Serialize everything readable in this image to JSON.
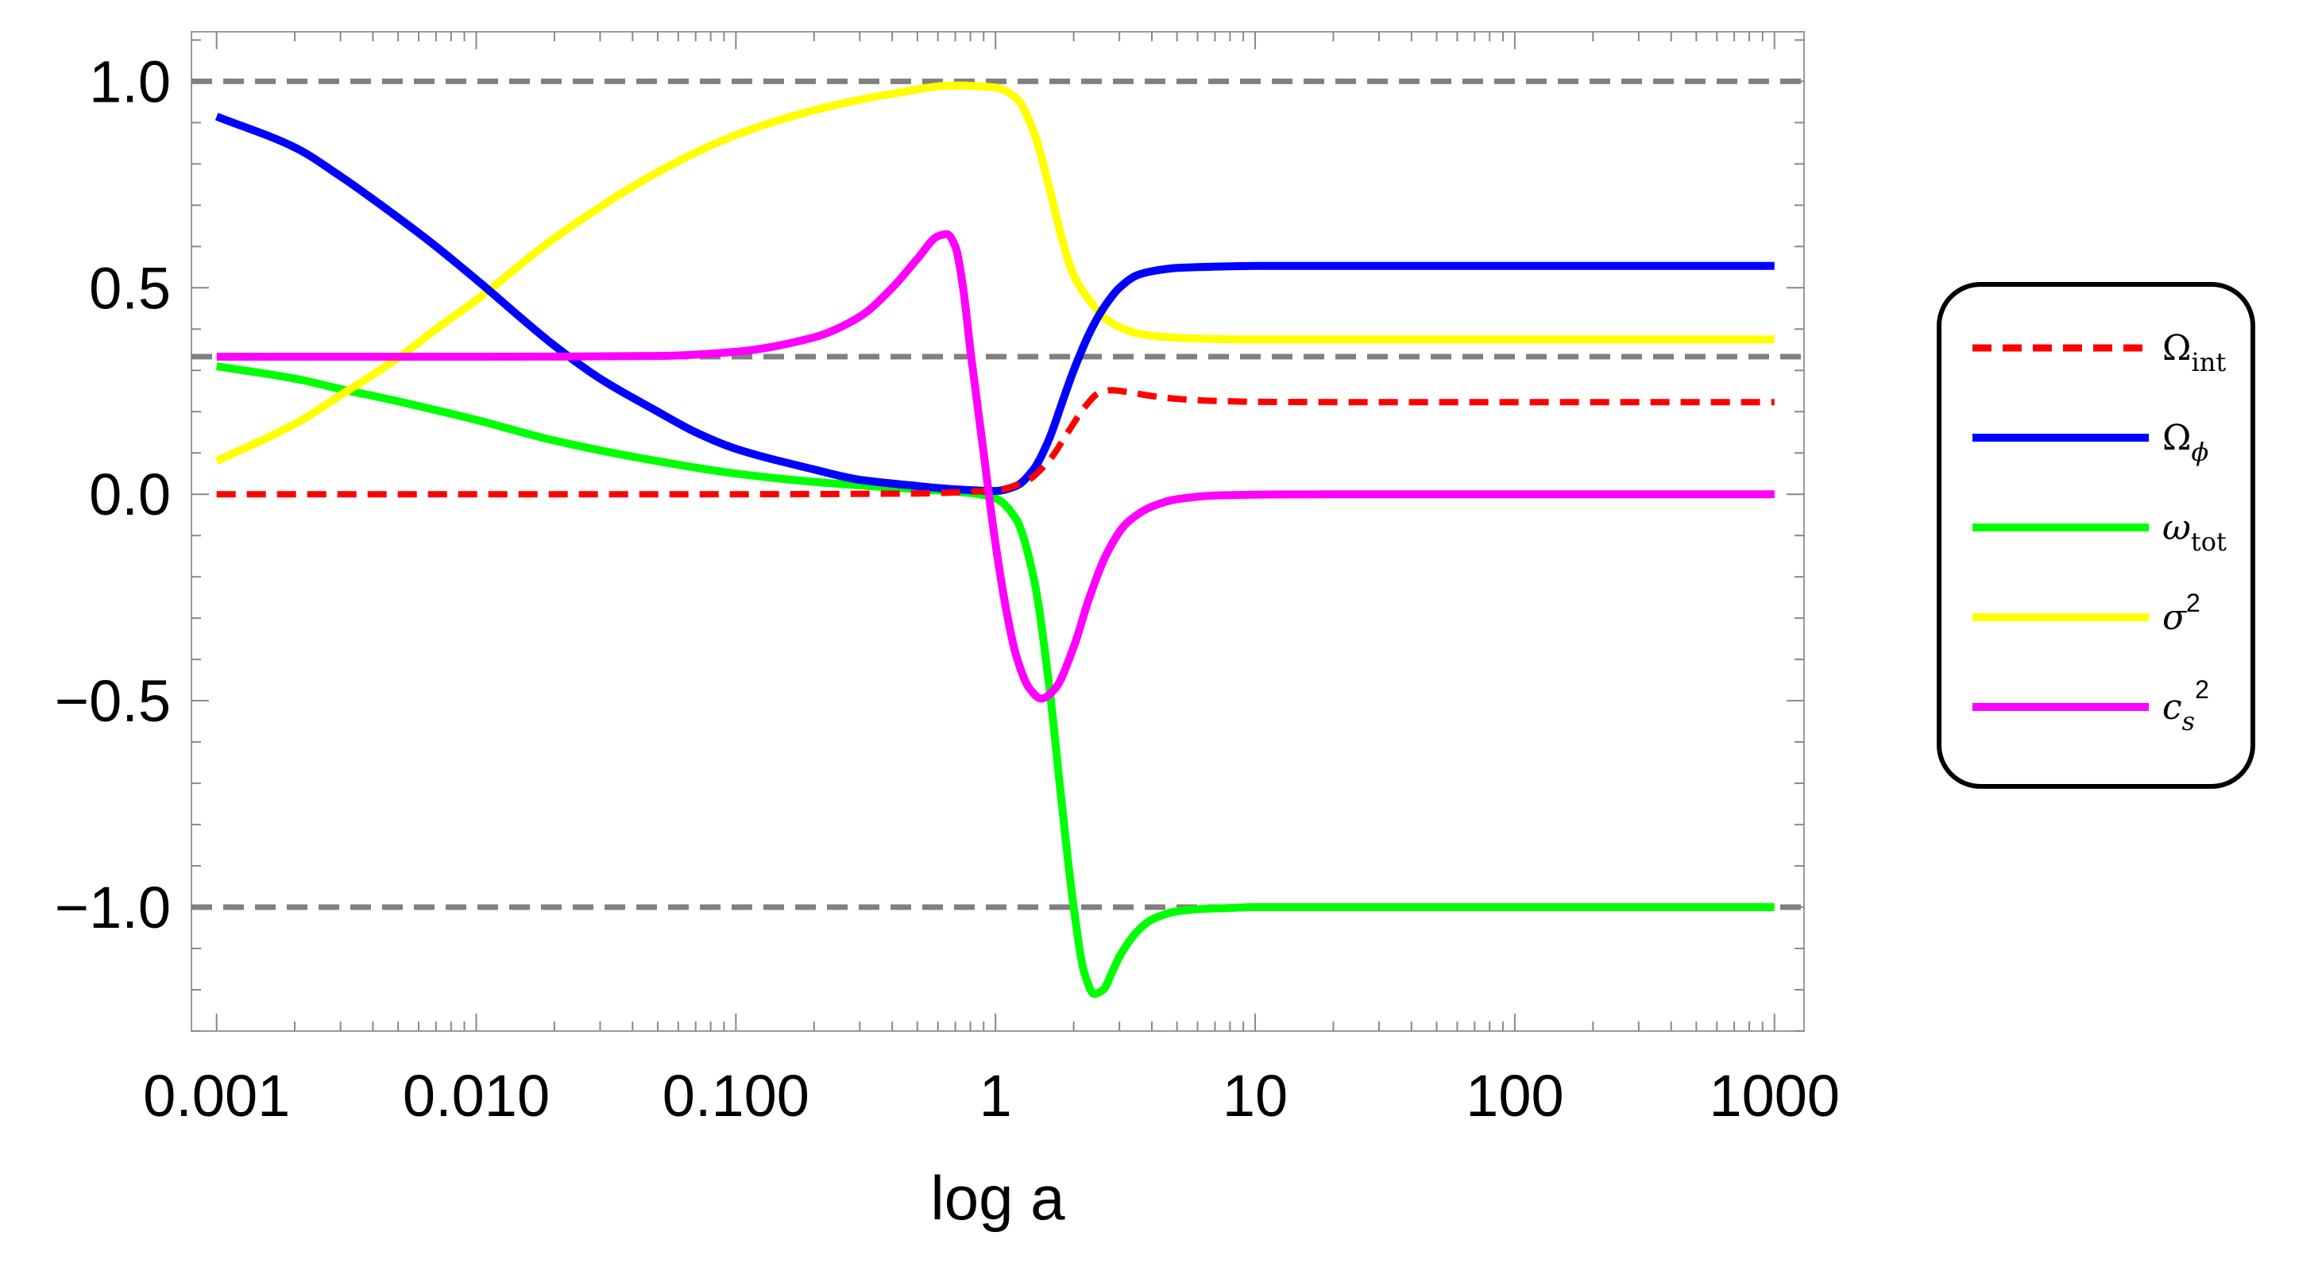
{
  "chart_data": {
    "type": "line",
    "title": "",
    "xlabel": "log a",
    "ylabel": "",
    "x_scale": "log",
    "xlim": [
      0.0008,
      1300
    ],
    "ylim": [
      -1.3,
      1.12
    ],
    "x_ticks": [
      0.001,
      0.01,
      0.1,
      1,
      10,
      100,
      1000
    ],
    "x_tick_labels": [
      "0.001",
      "0.010",
      "0.100",
      "1",
      "10",
      "100",
      "1000"
    ],
    "y_ticks": [
      -1.0,
      -0.5,
      0.0,
      0.5,
      1.0
    ],
    "y_tick_labels": [
      "−1.0",
      "−0.5",
      "0.0",
      "0.5",
      "1.0"
    ],
    "grid": false,
    "frame": true,
    "legend_position": "right",
    "reference_lines": [
      {
        "y": 1.0,
        "color": "#808080",
        "style": "dashed"
      },
      {
        "y": 0.3333,
        "color": "#808080",
        "style": "dashed"
      },
      {
        "y": -1.0,
        "color": "#808080",
        "style": "dashed"
      }
    ],
    "series": [
      {
        "name": "Ωint",
        "legend_main": "Ω",
        "legend_sub": "int",
        "color": "#ff0000",
        "style": "dashed",
        "x": [
          0.001,
          0.01,
          0.1,
          0.5,
          1.0,
          1.3,
          1.6,
          1.9,
          2.2,
          2.5,
          2.8,
          3.2,
          4.0,
          5.0,
          7.0,
          10,
          30,
          100,
          1000
        ],
        "values": [
          0.0,
          0.0,
          0.0,
          0.002,
          0.01,
          0.03,
          0.08,
          0.15,
          0.21,
          0.245,
          0.252,
          0.248,
          0.238,
          0.231,
          0.226,
          0.224,
          0.223,
          0.223,
          0.223
        ]
      },
      {
        "name": "Ωϕ",
        "legend_main": "Ω",
        "legend_sub": "ϕ",
        "color": "#0000ff",
        "style": "solid",
        "x": [
          0.001,
          0.002,
          0.003,
          0.005,
          0.007,
          0.01,
          0.02,
          0.03,
          0.05,
          0.07,
          0.1,
          0.2,
          0.3,
          0.5,
          0.7,
          1.0,
          1.2,
          1.4,
          1.6,
          1.8,
          2.0,
          2.3,
          2.6,
          3.0,
          3.5,
          4.0,
          5.0,
          6.0,
          8.0,
          10,
          20,
          100,
          1000
        ],
        "values": [
          0.915,
          0.84,
          0.77,
          0.67,
          0.6,
          0.52,
          0.36,
          0.28,
          0.2,
          0.15,
          0.11,
          0.06,
          0.035,
          0.02,
          0.012,
          0.008,
          0.02,
          0.06,
          0.13,
          0.22,
          0.3,
          0.39,
          0.45,
          0.5,
          0.53,
          0.54,
          0.548,
          0.55,
          0.552,
          0.553,
          0.553,
          0.553,
          0.553
        ]
      },
      {
        "name": "ωtot",
        "legend_main": "ω",
        "legend_sub": "tot",
        "color": "#00ff00",
        "style": "solid",
        "x": [
          0.001,
          0.002,
          0.003,
          0.005,
          0.01,
          0.02,
          0.05,
          0.1,
          0.2,
          0.5,
          0.8,
          1.0,
          1.2,
          1.4,
          1.6,
          1.8,
          2.0,
          2.2,
          2.4,
          2.6,
          2.8,
          3.0,
          3.5,
          4.0,
          5.0,
          6.0,
          8.0,
          10,
          20,
          100,
          1000
        ],
        "values": [
          0.31,
          0.28,
          0.255,
          0.225,
          0.18,
          0.13,
          0.08,
          0.05,
          0.03,
          0.012,
          0.003,
          -0.01,
          -0.06,
          -0.2,
          -0.45,
          -0.75,
          -1.0,
          -1.16,
          -1.21,
          -1.2,
          -1.16,
          -1.12,
          -1.06,
          -1.03,
          -1.01,
          -1.005,
          -1.002,
          -1.0,
          -1.0,
          -1.0,
          -1.0
        ]
      },
      {
        "name": "σ²",
        "legend_main": "σ",
        "legend_sup": "2",
        "color": "#ffff00",
        "style": "solid",
        "x": [
          0.001,
          0.002,
          0.003,
          0.005,
          0.007,
          0.01,
          0.02,
          0.05,
          0.1,
          0.2,
          0.4,
          0.7,
          1.0,
          1.2,
          1.4,
          1.6,
          1.8,
          2.0,
          2.3,
          2.6,
          3.0,
          3.5,
          4.0,
          5.0,
          7.0,
          10,
          20,
          100,
          1000
        ],
        "values": [
          0.08,
          0.17,
          0.24,
          0.33,
          0.4,
          0.47,
          0.62,
          0.78,
          0.87,
          0.93,
          0.97,
          0.99,
          0.985,
          0.96,
          0.88,
          0.75,
          0.62,
          0.53,
          0.47,
          0.43,
          0.405,
          0.39,
          0.384,
          0.379,
          0.376,
          0.375,
          0.375,
          0.375,
          0.375
        ]
      },
      {
        "name": "cs²",
        "legend_main": "c",
        "legend_sub": "s",
        "legend_sup": "2",
        "color": "#ff00ff",
        "style": "solid",
        "x": [
          0.001,
          0.01,
          0.05,
          0.1,
          0.2,
          0.3,
          0.4,
          0.5,
          0.6,
          0.65,
          0.7,
          0.75,
          0.8,
          0.9,
          1.0,
          1.1,
          1.2,
          1.35,
          1.5,
          1.7,
          2.0,
          2.3,
          2.7,
          3.2,
          4.0,
          5.0,
          7.0,
          10,
          20,
          100,
          1000
        ],
        "values": [
          0.333,
          0.333,
          0.335,
          0.345,
          0.38,
          0.43,
          0.5,
          0.57,
          0.625,
          0.63,
          0.6,
          0.5,
          0.35,
          0.1,
          -0.12,
          -0.28,
          -0.39,
          -0.47,
          -0.495,
          -0.47,
          -0.37,
          -0.25,
          -0.14,
          -0.07,
          -0.03,
          -0.012,
          -0.003,
          -0.001,
          0.0,
          0.0,
          0.0
        ]
      }
    ]
  }
}
